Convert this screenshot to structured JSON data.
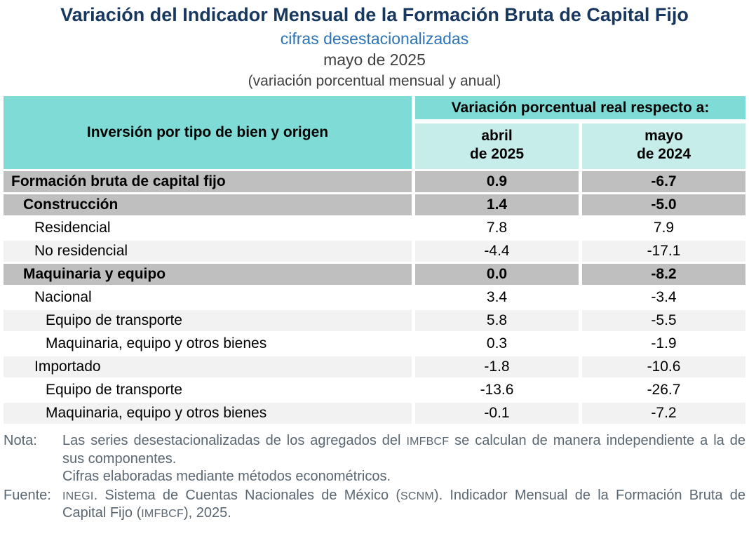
{
  "header": {
    "title": "Variación del Indicador Mensual de la Formación Bruta de Capital Fijo",
    "subtitle": "cifras desestacionalizadas",
    "period": "mayo de 2025",
    "caption": "(variación porcentual mensual y anual)"
  },
  "table": {
    "corner_header": "Inversión por tipo de bien y origen",
    "group_header": "Variación porcentual real respecto a:",
    "col_headers": [
      "abril\nde 2025",
      "mayo\nde 2024"
    ],
    "rows": [
      {
        "label": "Formación bruta de capital fijo",
        "abril_2025": "0.9",
        "mayo_2024": "-6.7"
      },
      {
        "label": "Construcción",
        "abril_2025": "1.4",
        "mayo_2024": "-5.0"
      },
      {
        "label": "Residencial",
        "abril_2025": "7.8",
        "mayo_2024": "7.9"
      },
      {
        "label": "No residencial",
        "abril_2025": "-4.4",
        "mayo_2024": "-17.1"
      },
      {
        "label": "Maquinaria y equipo",
        "abril_2025": "0.0",
        "mayo_2024": "-8.2"
      },
      {
        "label": "Nacional",
        "abril_2025": "3.4",
        "mayo_2024": "-3.4"
      },
      {
        "label": "Equipo de transporte",
        "abril_2025": "5.8",
        "mayo_2024": "-5.5"
      },
      {
        "label": "Maquinaria, equipo y otros bienes",
        "abril_2025": "0.3",
        "mayo_2024": "-1.9"
      },
      {
        "label": "Importado",
        "abril_2025": "-1.8",
        "mayo_2024": "-10.6"
      },
      {
        "label": "Equipo de transporte",
        "abril_2025": "-13.6",
        "mayo_2024": "-26.7"
      },
      {
        "label": "Maquinaria, equipo y otros bienes",
        "abril_2025": "-0.1",
        "mayo_2024": "-7.2"
      }
    ]
  },
  "notes": {
    "nota_label": "Nota:",
    "nota_part1": "Las series desestacionalizadas de los agregados del ",
    "nota_acronym1": "IMFBCF",
    "nota_part2": " se calculan de manera independiente a la de sus componentes.",
    "nota_line2": "Cifras elaboradas mediante métodos econométricos.",
    "fuente_label": "Fuente:",
    "fuente_acronym1": "INEGI",
    "fuente_part1": ". Sistema de Cuentas Nacionales de México (",
    "fuente_acronym2": "SCNM",
    "fuente_part2": "). Indicador Mensual de la Formación Bruta de Capital Fijo (",
    "fuente_acronym3": "IMFBCF",
    "fuente_part3": "), 2025."
  },
  "colors": {
    "header_teal": "#7FDBD5",
    "subheader_teal": "#C7EDEA",
    "section_row_gray": "#BFBFBF",
    "zebra_row_gray": "#F2F2F2",
    "title_navy": "#17375E",
    "subtitle_blue": "#2E74B5",
    "note_text_slate": "#5A6772"
  }
}
